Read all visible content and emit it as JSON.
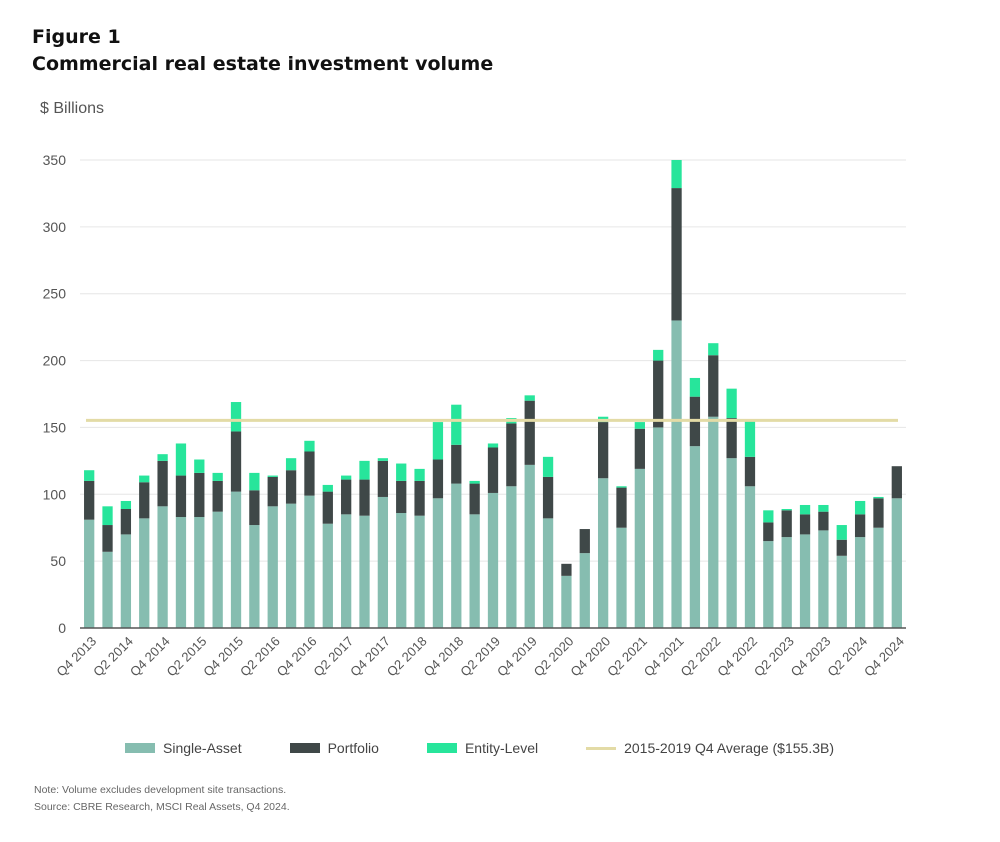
{
  "figure": {
    "label": "Figure 1",
    "title": "Commercial real estate investment volume"
  },
  "colors": {
    "single": "#86bdb0",
    "portfolio": "#3f4848",
    "entity": "#27e59b",
    "average": "#e3dba6",
    "grid": "#e6e6e6",
    "axis": "#555555",
    "text": "#555555"
  },
  "chart_data": {
    "type": "bar",
    "stacked": true,
    "ylabel": "$ Billions",
    "ylim": [
      0,
      350
    ],
    "yticks": [
      0,
      50,
      100,
      150,
      200,
      250,
      300,
      350
    ],
    "grid": true,
    "legend_position": "bottom",
    "reference_line": {
      "name": "2015-2019 Q4 Average ($155.3B)",
      "value": 155.3
    },
    "tick_labels": [
      "Q4 2013",
      "Q2 2014",
      "Q4 2014",
      "Q2 2015",
      "Q4 2015",
      "Q2 2016",
      "Q4 2016",
      "Q2 2017",
      "Q4 2017",
      "Q2 2018",
      "Q4 2018",
      "Q2 2019",
      "Q4 2019",
      "Q2 2020",
      "Q4 2020",
      "Q2 2021",
      "Q4 2021",
      "Q2 2022",
      "Q4 2022",
      "Q2 2023",
      "Q4 2023",
      "Q2 2024",
      "Q4 2024"
    ],
    "categories": [
      "Q4 2013",
      "Q1 2014",
      "Q2 2014",
      "Q3 2014",
      "Q4 2014",
      "Q1 2015",
      "Q2 2015",
      "Q3 2015",
      "Q4 2015",
      "Q1 2016",
      "Q2 2016",
      "Q3 2016",
      "Q4 2016",
      "Q1 2017",
      "Q2 2017",
      "Q3 2017",
      "Q4 2017",
      "Q1 2018",
      "Q2 2018",
      "Q3 2018",
      "Q4 2018",
      "Q1 2019",
      "Q2 2019",
      "Q3 2019",
      "Q4 2019",
      "Q1 2020",
      "Q2 2020",
      "Q3 2020",
      "Q4 2020",
      "Q1 2021",
      "Q2 2021",
      "Q3 2021",
      "Q4 2021",
      "Q1 2022",
      "Q2 2022",
      "Q3 2022",
      "Q4 2022",
      "Q1 2023",
      "Q2 2023",
      "Q3 2023",
      "Q4 2023",
      "Q1 2024",
      "Q2 2024",
      "Q3 2024",
      "Q4 2024"
    ],
    "series": [
      {
        "name": "Single-Asset",
        "values": [
          81,
          57,
          70,
          82,
          91,
          83,
          83,
          87,
          102,
          77,
          91,
          93,
          99,
          78,
          85,
          84,
          98,
          86,
          84,
          97,
          108,
          85,
          101,
          106,
          122,
          82,
          39,
          56,
          112,
          75,
          119,
          150,
          230,
          136,
          158,
          127,
          106,
          65,
          68,
          70,
          73,
          54,
          68,
          75,
          97
        ]
      },
      {
        "name": "Portfolio",
        "values": [
          29,
          20,
          19,
          27,
          34,
          31,
          33,
          23,
          45,
          26,
          22,
          25,
          33,
          24,
          26,
          27,
          27,
          24,
          26,
          29,
          29,
          23,
          34,
          47,
          48,
          31,
          9,
          18,
          42,
          30,
          30,
          50,
          99,
          37,
          46,
          30,
          22,
          14,
          20,
          15,
          14,
          12,
          17,
          22,
          24
        ]
      },
      {
        "name": "Entity-Level",
        "values": [
          8,
          14,
          6,
          5,
          5,
          24,
          10,
          6,
          22,
          13,
          1,
          9,
          8,
          5,
          3,
          14,
          2,
          13,
          9,
          28,
          30,
          2,
          3,
          4,
          4,
          15,
          0,
          0,
          4,
          1,
          5,
          8,
          22,
          14,
          9,
          22,
          27,
          9,
          1,
          7,
          5,
          11,
          10,
          1,
          0
        ]
      }
    ]
  },
  "note": "Note: Volume excludes development site transactions.",
  "source": "Source: CBRE Research, MSCI Real Assets, Q4 2024."
}
